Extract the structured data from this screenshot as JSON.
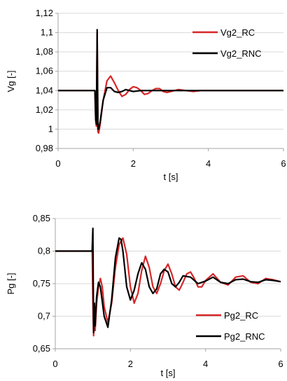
{
  "chart_data": [
    {
      "type": "line",
      "xlabel": "t [s]",
      "ylabel": "Vg [-]",
      "xlim": [
        0,
        6
      ],
      "ylim": [
        0.98,
        1.12
      ],
      "xticks": [
        0,
        2,
        4,
        6
      ],
      "xtick_labels": [
        "0",
        "2",
        "4",
        "6"
      ],
      "yticks": [
        0.98,
        1.0,
        1.02,
        1.04,
        1.06,
        1.08,
        1.1,
        1.12
      ],
      "ytick_labels": [
        "0,98",
        "1",
        "1,02",
        "1,04",
        "1,06",
        "1,08",
        "1,1",
        "1,12"
      ],
      "grid": "horizontal",
      "legend_position": "top-right",
      "series": [
        {
          "name": "Vg2_RC",
          "color": "#d62728",
          "x": [
            0,
            0.95,
            0.98,
            1.0,
            1.02,
            1.04,
            1.06,
            1.08,
            1.12,
            1.2,
            1.3,
            1.4,
            1.5,
            1.6,
            1.7,
            1.8,
            1.9,
            2.0,
            2.1,
            2.2,
            2.3,
            2.4,
            2.5,
            2.6,
            2.7,
            2.8,
            2.9,
            3.0,
            3.2,
            3.4,
            3.6,
            3.8,
            4.0,
            4.5,
            5.0,
            5.5,
            6.0
          ],
          "y": [
            1.04,
            1.04,
            1.04,
            1.01,
            1.003,
            1.1,
            0.997,
            0.996,
            1.005,
            1.03,
            1.05,
            1.055,
            1.048,
            1.04,
            1.034,
            1.036,
            1.041,
            1.044,
            1.043,
            1.04,
            1.036,
            1.037,
            1.04,
            1.042,
            1.042,
            1.039,
            1.038,
            1.039,
            1.041,
            1.04,
            1.039,
            1.04,
            1.04,
            1.04,
            1.04,
            1.04,
            1.04
          ]
        },
        {
          "name": "Vg2_RNC",
          "color": "#000000",
          "x": [
            0,
            0.95,
            0.98,
            1.0,
            1.02,
            1.04,
            1.06,
            1.08,
            1.12,
            1.2,
            1.3,
            1.4,
            1.5,
            1.6,
            1.7,
            1.8,
            1.9,
            2.0,
            2.2,
            2.4,
            2.6,
            2.8,
            3.0,
            3.5,
            4.0,
            4.5,
            5.0,
            5.5,
            6.0
          ],
          "y": [
            1.04,
            1.04,
            1.04,
            1.01,
            1.005,
            1.103,
            1.0,
            1.0,
            1.008,
            1.03,
            1.043,
            1.043,
            1.039,
            1.038,
            1.039,
            1.041,
            1.04,
            1.039,
            1.04,
            1.04,
            1.04,
            1.04,
            1.04,
            1.04,
            1.04,
            1.04,
            1.04,
            1.04,
            1.04
          ]
        }
      ]
    },
    {
      "type": "line",
      "xlabel": "t [s]",
      "ylabel": "Pg [-]",
      "xlim": [
        0,
        6
      ],
      "ylim": [
        0.65,
        0.85
      ],
      "xticks": [
        0,
        2,
        4,
        6
      ],
      "xtick_labels": [
        "0",
        "2",
        "4",
        "6"
      ],
      "yticks": [
        0.65,
        0.7,
        0.75,
        0.8,
        0.85
      ],
      "ytick_labels": [
        "0,65",
        "0,7",
        "0,75",
        "0,8",
        "0,85"
      ],
      "grid": "horizontal",
      "legend_position": "bottom-right",
      "series": [
        {
          "name": "Pg2_RC",
          "color": "#d62728",
          "x": [
            0,
            0.95,
            0.98,
            1.0,
            1.02,
            1.04,
            1.06,
            1.1,
            1.15,
            1.2,
            1.25,
            1.3,
            1.4,
            1.5,
            1.6,
            1.7,
            1.8,
            1.9,
            2.0,
            2.1,
            2.2,
            2.3,
            2.4,
            2.5,
            2.6,
            2.7,
            2.8,
            2.9,
            3.0,
            3.1,
            3.2,
            3.3,
            3.4,
            3.5,
            3.6,
            3.7,
            3.8,
            3.9,
            4.0,
            4.2,
            4.4,
            4.6,
            4.8,
            5.0,
            5.2,
            5.4,
            5.6,
            5.8,
            6.0
          ],
          "y": [
            0.8,
            0.8,
            0.8,
            0.72,
            0.67,
            0.705,
            0.678,
            0.72,
            0.745,
            0.758,
            0.745,
            0.715,
            0.69,
            0.72,
            0.775,
            0.81,
            0.82,
            0.795,
            0.745,
            0.72,
            0.735,
            0.77,
            0.792,
            0.775,
            0.745,
            0.735,
            0.75,
            0.77,
            0.78,
            0.765,
            0.745,
            0.74,
            0.752,
            0.765,
            0.768,
            0.758,
            0.745,
            0.745,
            0.755,
            0.765,
            0.752,
            0.748,
            0.76,
            0.762,
            0.752,
            0.75,
            0.758,
            0.756,
            0.753
          ]
        },
        {
          "name": "Pg2_RNC",
          "color": "#000000",
          "x": [
            0,
            0.95,
            0.98,
            1.0,
            1.02,
            1.04,
            1.06,
            1.1,
            1.15,
            1.2,
            1.3,
            1.4,
            1.5,
            1.6,
            1.7,
            1.75,
            1.8,
            1.9,
            2.0,
            2.1,
            2.2,
            2.3,
            2.4,
            2.5,
            2.6,
            2.7,
            2.8,
            2.9,
            3.0,
            3.1,
            3.2,
            3.3,
            3.4,
            3.6,
            3.8,
            4.0,
            4.2,
            4.4,
            4.6,
            4.8,
            5.0,
            5.2,
            5.4,
            5.6,
            5.8,
            6.0
          ],
          "y": [
            0.8,
            0.8,
            0.8,
            0.835,
            0.675,
            0.72,
            0.685,
            0.73,
            0.752,
            0.745,
            0.7,
            0.683,
            0.725,
            0.79,
            0.82,
            0.818,
            0.8,
            0.745,
            0.725,
            0.74,
            0.765,
            0.782,
            0.772,
            0.745,
            0.735,
            0.742,
            0.765,
            0.772,
            0.768,
            0.75,
            0.745,
            0.752,
            0.762,
            0.76,
            0.75,
            0.754,
            0.76,
            0.752,
            0.75,
            0.756,
            0.757,
            0.753,
            0.752,
            0.756,
            0.755,
            0.753
          ]
        }
      ]
    }
  ]
}
